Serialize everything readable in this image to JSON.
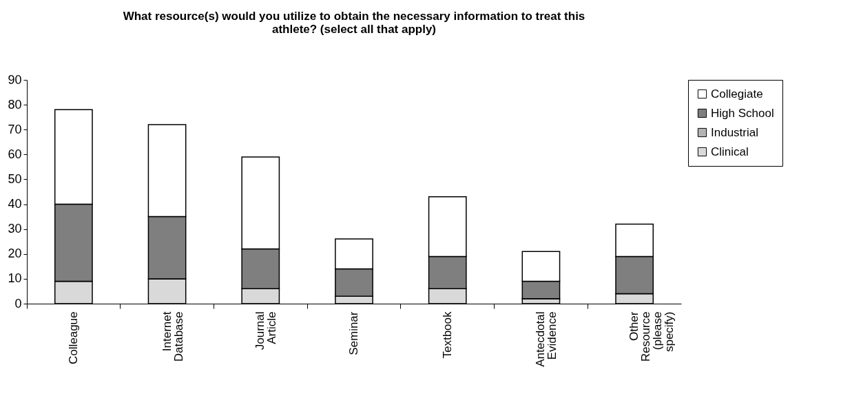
{
  "chart_data": {
    "type": "bar",
    "stacked": true,
    "title": "What resource(s) would you utilize to obtain the necessary information to treat this athlete? (select all that apply)",
    "categories": [
      "Colleague",
      "Internet Database",
      "Journal Article",
      "Seminar",
      "Textbook",
      "Antecdotal Evidence",
      "Other Resource (please specify)"
    ],
    "series": [
      {
        "name": "Clinical",
        "color": "#d9d9d9",
        "values": [
          9,
          10,
          6,
          3,
          6,
          2,
          4
        ]
      },
      {
        "name": "Industrial",
        "color": "#b3b3b3",
        "values": [
          0,
          0,
          0,
          0,
          0,
          0,
          0
        ]
      },
      {
        "name": "High School",
        "color": "#7f7f7f",
        "values": [
          31,
          25,
          16,
          11,
          13,
          7,
          15
        ]
      },
      {
        "name": "Collegiate",
        "color": "#ffffff",
        "values": [
          38,
          37,
          37,
          12,
          24,
          12,
          13
        ]
      }
    ],
    "ylim": [
      0,
      90
    ],
    "yticks": [
      0,
      10,
      20,
      30,
      40,
      50,
      60,
      70,
      80,
      90
    ],
    "grid": false,
    "legend": "right"
  }
}
